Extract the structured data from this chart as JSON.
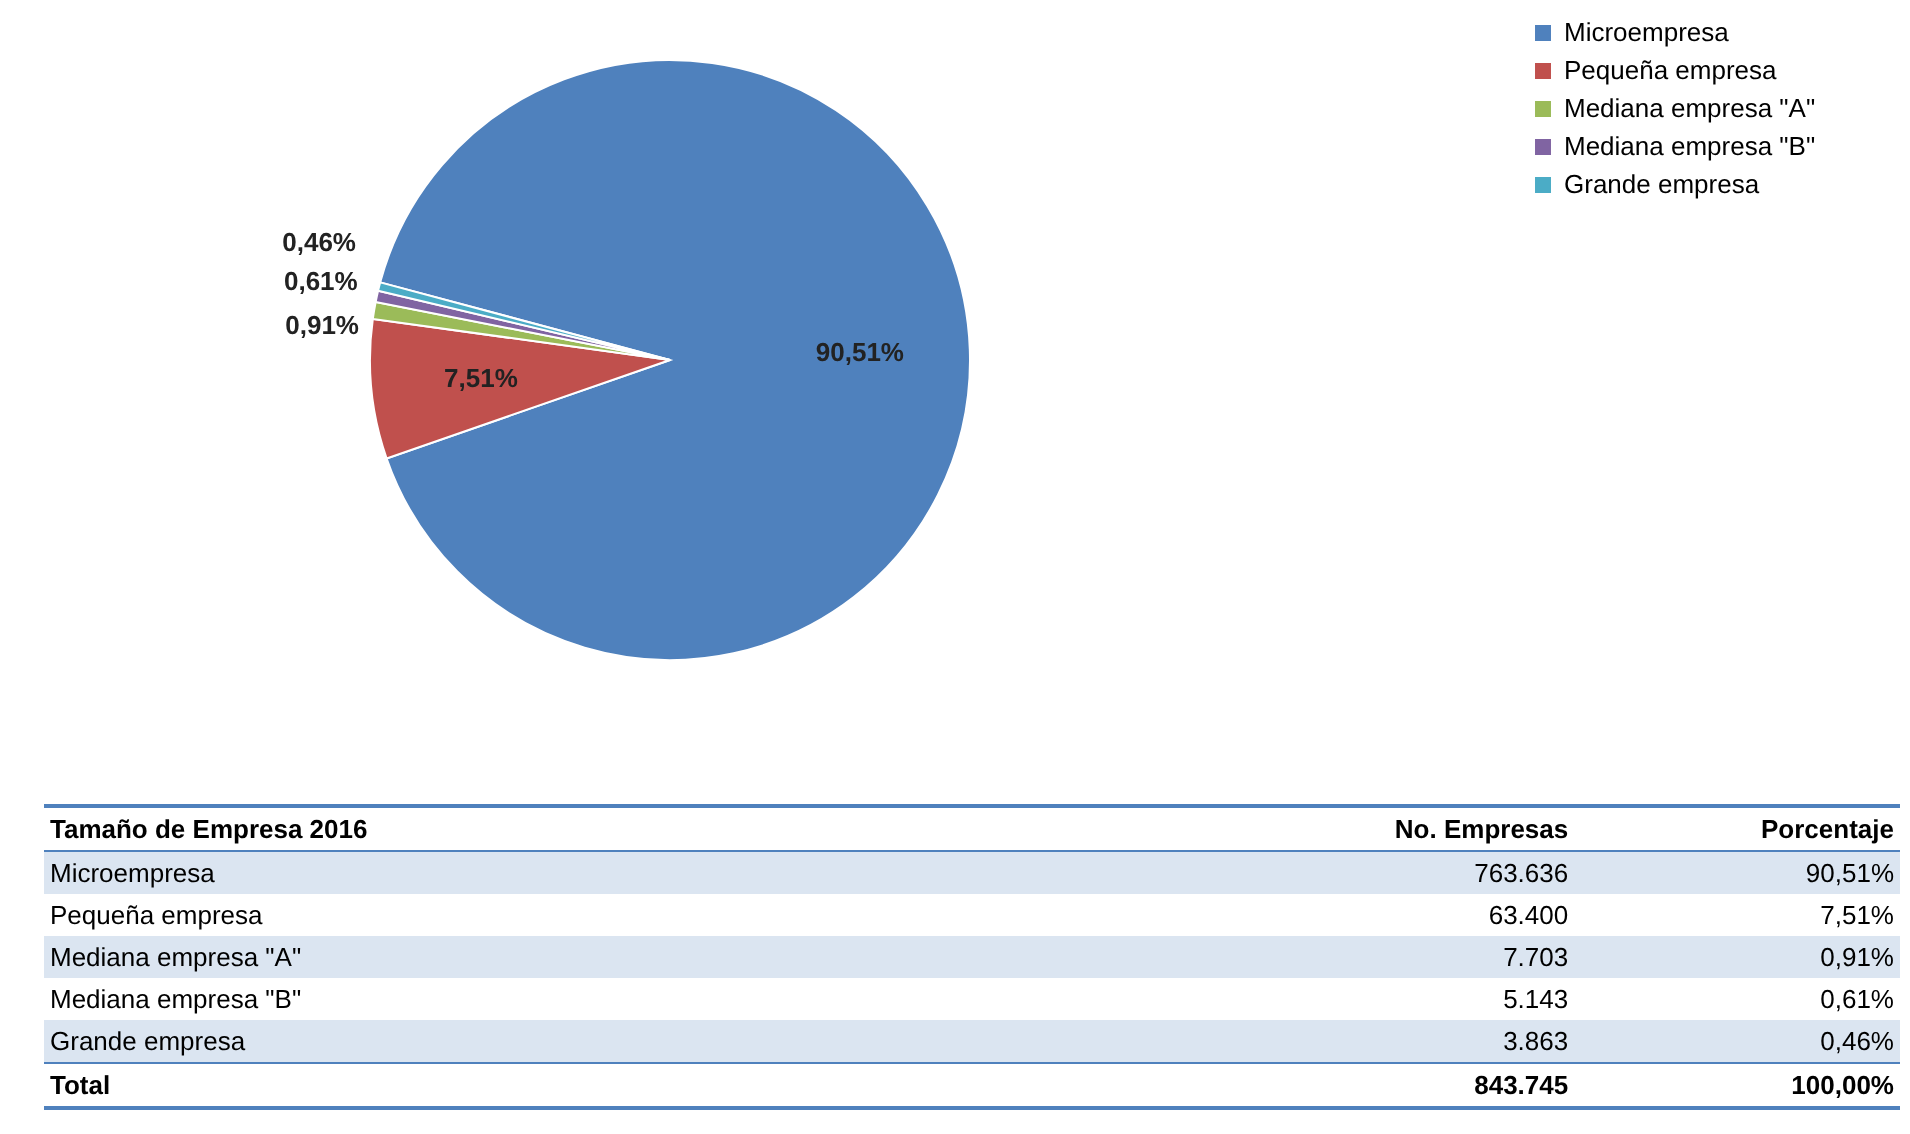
{
  "chart_data": {
    "type": "pie",
    "categories": [
      "Microempresa",
      "Pequeña empresa",
      "Mediana empresa \"A\"",
      "Mediana empresa \"B\"",
      "Grande empresa"
    ],
    "values": [
      90.51,
      7.51,
      0.91,
      0.61,
      0.46
    ],
    "colors": [
      "#4f81bd",
      "#c0504d",
      "#9bbb59",
      "#8064a2",
      "#4bacc6"
    ],
    "value_labels": [
      "90,51%",
      "7,51%",
      "0,91%",
      "0,61%",
      "0,46%"
    ],
    "legend": "right",
    "annotations": [
      "Tamaño de Empresa 2016",
      "No. Empresas",
      "Porcentaje",
      "763.636",
      "63.400",
      "7.703",
      "5.143",
      "3.863",
      "Total",
      "843.745",
      "100,00%"
    ]
  }
}
